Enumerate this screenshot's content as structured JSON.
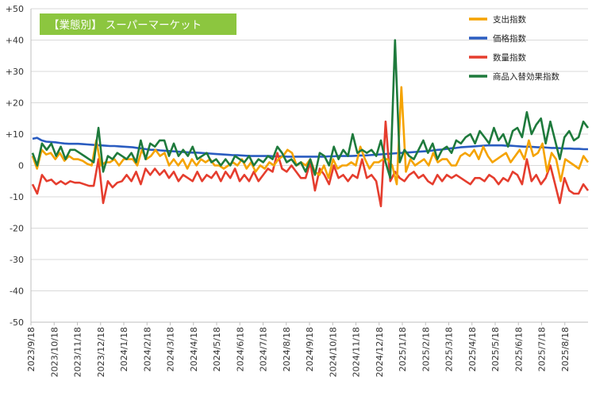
{
  "chart_data": {
    "type": "line",
    "title": "【業態別】 スーパーマーケット",
    "title_bg": "#8cc63f",
    "ylim": [
      -50,
      50
    ],
    "yticks": [
      "+50",
      "+40",
      "+30",
      "+20",
      "+10",
      "0",
      "-10",
      "-20",
      "-30",
      "-40",
      "-50"
    ],
    "ytick_values": [
      50,
      40,
      30,
      20,
      10,
      0,
      -10,
      -20,
      -30,
      -40,
      -50
    ],
    "xtick_labels": [
      "2023/9/18",
      "2023/10/18",
      "2023/11/18",
      "2023/12/18",
      "2024/1/18",
      "2024/2/18",
      "2024/3/18",
      "2024/4/18",
      "2024/5/18",
      "2024/6/18",
      "2024/7/18",
      "2024/8/18",
      "2024/9/18",
      "2024/10/18",
      "2024/11/18",
      "2024/12/18",
      "2025/1/18",
      "2025/2/18",
      "2025/3/18",
      "2025/4/18",
      "2025/5/18",
      "2025/6/18",
      "2025/7/18",
      "2025/8/18"
    ],
    "grid": true,
    "legend_position": "top-right",
    "series": [
      {
        "name": "支出指数",
        "color": "#f5a300",
        "values": [
          3,
          -1,
          5,
          3.5,
          4,
          2,
          4,
          1.5,
          3,
          2,
          2,
          1.5,
          0.5,
          0,
          8,
          0,
          1,
          1,
          2,
          0,
          2,
          2,
          2,
          0,
          5,
          2,
          3,
          5,
          3,
          4,
          0,
          2,
          0,
          2,
          -1,
          2,
          0,
          2,
          1,
          2,
          0,
          0,
          -1,
          0,
          1,
          0,
          2,
          -1,
          1,
          -2,
          0,
          -1,
          1,
          0,
          2,
          3,
          5,
          4,
          0,
          1,
          0,
          2,
          -2,
          -3,
          0,
          -4,
          2,
          -1,
          0,
          0,
          1,
          0,
          6,
          2,
          -1,
          1,
          1,
          2,
          2,
          0,
          -6,
          25,
          -2,
          2,
          0,
          1,
          2,
          0,
          4,
          1,
          2,
          2,
          0,
          0,
          3,
          4,
          3,
          5,
          2,
          6,
          3,
          1,
          2,
          3,
          4,
          1,
          3,
          5,
          2,
          8,
          3,
          4,
          7,
          -2,
          4,
          2,
          -5,
          2,
          1,
          0,
          -1,
          3,
          1
        ]
      },
      {
        "name": "価格指数",
        "color": "#2a5cc0",
        "values": [
          8.5,
          8.8,
          8,
          7.6,
          7.5,
          7.4,
          7.2,
          7,
          6.9,
          6.9,
          6.9,
          6.8,
          6.7,
          6.6,
          6.5,
          6.4,
          6.3,
          6.2,
          6.2,
          6.1,
          6,
          5.9,
          5.8,
          5.6,
          5.4,
          5.2,
          5,
          5,
          4.8,
          4.7,
          4.6,
          4.5,
          4.4,
          4.3,
          4.2,
          4.1,
          4.1,
          4,
          3.9,
          3.8,
          3.7,
          3.6,
          3.5,
          3.4,
          3.3,
          3.3,
          3.2,
          3.1,
          3,
          3,
          3,
          3,
          3,
          2.9,
          2.9,
          2.9,
          2.8,
          2.8,
          2.8,
          2.8,
          2.8,
          2.8,
          2.8,
          2.8,
          2.8,
          2.9,
          2.9,
          3,
          3,
          3,
          3,
          3.1,
          3.2,
          3.2,
          3.3,
          3.4,
          3.5,
          3.6,
          3.7,
          3.8,
          3.9,
          4,
          4.1,
          4.2,
          4.3,
          4.4,
          4.5,
          4.6,
          4.8,
          5,
          5.1,
          5.3,
          5.5,
          5.6,
          5.8,
          5.9,
          6,
          6.1,
          6.2,
          6.3,
          6.4,
          6.4,
          6.4,
          6.4,
          6.3,
          6.3,
          6.2,
          6.1,
          6,
          6,
          5.9,
          5.8,
          5.8,
          5.7,
          5.6,
          5.6,
          5.5,
          5.4,
          5.4,
          5.3,
          5.3,
          5.2,
          5.2
        ]
      },
      {
        "name": "数量指数",
        "color": "#e53d2e",
        "values": [
          -6,
          -9,
          -3,
          -5,
          -4.5,
          -6,
          -5,
          -6,
          -5,
          -5.5,
          -5.5,
          -6,
          -6.5,
          -6.5,
          2,
          -12,
          -5,
          -7,
          -5.5,
          -5,
          -3,
          -5,
          -2,
          -6,
          -1,
          -3,
          -1,
          -3,
          -1.5,
          -4,
          -2,
          -5,
          -3,
          -4,
          -5,
          -2,
          -5,
          -3,
          -4,
          -2,
          -5,
          -2,
          -4,
          -1,
          -5,
          -3,
          -5,
          -2,
          -5,
          -3,
          -1,
          -2,
          4,
          -1,
          -2,
          0,
          -2,
          -4,
          -4,
          1,
          -8,
          -1,
          -3,
          -6,
          0,
          -4,
          -3,
          -5,
          -3,
          -4,
          2,
          -4,
          -3,
          -5,
          -13,
          14,
          -5,
          -2,
          -4,
          -5,
          -3,
          -2,
          -4,
          -3,
          -5,
          -6,
          -3,
          -5,
          -3,
          -4,
          -3,
          -4,
          -5,
          -6,
          -4,
          -4,
          -5,
          -3,
          -4,
          -6,
          -4,
          -5,
          -2,
          -3,
          -6,
          2,
          -5,
          -3,
          -6,
          -4,
          0,
          -6,
          -12,
          -4,
          -8,
          -9,
          -9,
          -6,
          -8
        ]
      },
      {
        "name": "商品入替効果指数",
        "color": "#1e7a3c",
        "values": [
          4,
          0,
          7,
          5,
          7,
          3,
          6,
          2,
          5,
          5,
          4,
          3,
          2,
          1,
          12,
          -2,
          3,
          2,
          4,
          3,
          2,
          4,
          1,
          8,
          2,
          7,
          6,
          8,
          8,
          3,
          7,
          3,
          5,
          3,
          6,
          2,
          3,
          4,
          1,
          2,
          0,
          2,
          0,
          3,
          2,
          1,
          3,
          0,
          2,
          1,
          3,
          2,
          6,
          4,
          1,
          2,
          0,
          1,
          -2,
          2,
          -3,
          4,
          3,
          0,
          6,
          2,
          5,
          3,
          10,
          4,
          5,
          4,
          5,
          3,
          8,
          1,
          -4,
          40,
          1,
          5,
          3,
          2,
          5,
          8,
          4,
          7,
          2,
          5,
          6,
          4,
          8,
          7,
          9,
          10,
          7,
          11,
          9,
          7,
          12,
          8,
          10,
          6,
          11,
          12,
          9,
          17,
          10,
          13,
          15,
          7,
          14,
          8,
          2,
          9,
          11,
          8,
          9,
          14,
          12
        ]
      }
    ]
  }
}
